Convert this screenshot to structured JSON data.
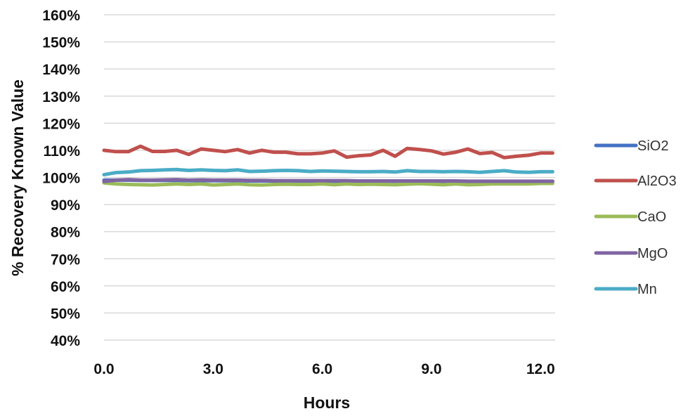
{
  "chart_data": {
    "type": "line",
    "title": "",
    "xlabel": "Hours",
    "ylabel": "% Recovery Known Value",
    "xlim": [
      0,
      12.4
    ],
    "ylim": [
      40,
      160
    ],
    "x_ticks": [
      0,
      3,
      6,
      9,
      12
    ],
    "x_tick_labels": [
      "0.0",
      "3.0",
      "6.0",
      "9.0",
      "12.0"
    ],
    "y_ticks": [
      40,
      50,
      60,
      70,
      80,
      90,
      100,
      110,
      120,
      130,
      140,
      150,
      160
    ],
    "y_tick_labels": [
      "40%",
      "50%",
      "60%",
      "70%",
      "80%",
      "90%",
      "100%",
      "110%",
      "120%",
      "130%",
      "140%",
      "150%",
      "160%"
    ],
    "grid": true,
    "legend_position": "right",
    "x": [
      0,
      0.33,
      0.67,
      1.0,
      1.33,
      1.67,
      2.0,
      2.33,
      2.67,
      3.0,
      3.33,
      3.67,
      4.0,
      4.33,
      4.67,
      5.0,
      5.33,
      5.67,
      6.0,
      6.33,
      6.67,
      7.0,
      7.33,
      7.67,
      8.0,
      8.33,
      8.67,
      9.0,
      9.33,
      9.67,
      10.0,
      10.33,
      10.67,
      11.0,
      11.33,
      11.67,
      12.0,
      12.33
    ],
    "series": [
      {
        "name": "SiO2",
        "color": "#4472C4",
        "values": [
          99.0,
          99.0,
          99.0,
          98.9,
          98.9,
          98.9,
          98.9,
          98.8,
          98.8,
          98.8,
          98.8,
          98.8,
          98.7,
          98.7,
          98.7,
          98.7,
          98.7,
          98.7,
          98.7,
          98.6,
          98.6,
          98.6,
          98.6,
          98.6,
          98.6,
          98.6,
          98.6,
          98.5,
          98.5,
          98.5,
          98.5,
          98.5,
          98.5,
          98.5,
          98.5,
          98.5,
          98.5,
          98.5
        ]
      },
      {
        "name": "Al2O3",
        "color": "#C0504D",
        "values": [
          110.0,
          109.5,
          109.5,
          111.5,
          109.6,
          109.6,
          110.0,
          108.5,
          110.5,
          110.0,
          109.5,
          110.3,
          109.0,
          110.0,
          109.3,
          109.3,
          108.7,
          108.7,
          109.0,
          109.8,
          107.5,
          108.0,
          108.3,
          110.0,
          107.8,
          110.7,
          110.3,
          109.8,
          108.6,
          109.3,
          110.5,
          108.8,
          109.2,
          107.3,
          107.8,
          108.2,
          109.0,
          109.0
        ]
      },
      {
        "name": "CaO",
        "color": "#9BBB59",
        "values": [
          98.0,
          97.6,
          97.4,
          97.3,
          97.2,
          97.4,
          97.6,
          97.4,
          97.6,
          97.2,
          97.4,
          97.6,
          97.3,
          97.2,
          97.4,
          97.5,
          97.4,
          97.4,
          97.6,
          97.3,
          97.6,
          97.4,
          97.5,
          97.4,
          97.3,
          97.5,
          97.7,
          97.5,
          97.3,
          97.6,
          97.3,
          97.4,
          97.6,
          97.6,
          97.6,
          97.6,
          97.8,
          97.8
        ]
      },
      {
        "name": "MgO",
        "color": "#8064A2",
        "values": [
          98.5,
          99.0,
          99.2,
          99.0,
          99.0,
          99.1,
          99.2,
          99.0,
          99.1,
          99.0,
          99.0,
          99.0,
          98.9,
          98.9,
          98.8,
          98.8,
          98.8,
          98.8,
          98.8,
          98.8,
          98.8,
          98.7,
          98.7,
          98.7,
          98.7,
          98.7,
          98.7,
          98.7,
          98.7,
          98.7,
          98.6,
          98.6,
          98.6,
          98.6,
          98.6,
          98.6,
          98.6,
          98.6
        ]
      },
      {
        "name": "Mn",
        "color": "#4BACC6",
        "values": [
          101.0,
          101.8,
          102.0,
          102.5,
          102.6,
          102.8,
          102.9,
          102.6,
          102.8,
          102.6,
          102.5,
          102.8,
          102.2,
          102.3,
          102.5,
          102.6,
          102.5,
          102.2,
          102.4,
          102.3,
          102.2,
          102.1,
          102.1,
          102.2,
          102.0,
          102.5,
          102.2,
          102.2,
          102.1,
          102.2,
          102.1,
          101.9,
          102.2,
          102.5,
          102.0,
          101.9,
          102.1,
          102.1
        ]
      }
    ]
  }
}
